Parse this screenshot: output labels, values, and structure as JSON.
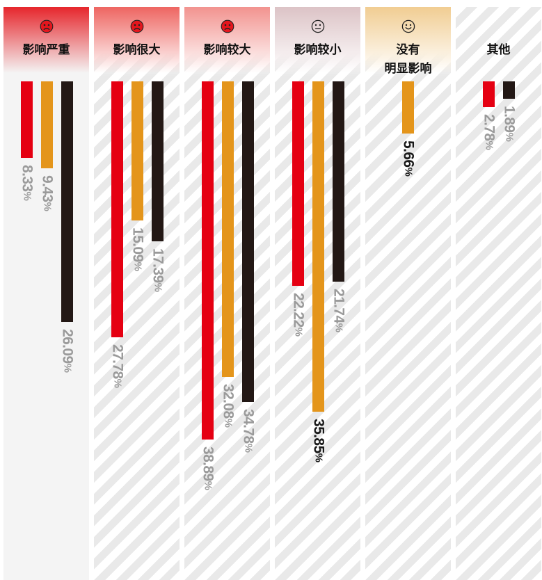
{
  "colors": {
    "page_bg": "#ffffff",
    "plain_column_bg": "#f4f4f4",
    "stripe": "#e9e9e9",
    "sad_icon_fill": "#e5161d",
    "icon_stroke": "#222222",
    "title_text": "#111111"
  },
  "columns": [
    {
      "icon": "sad-face-icon",
      "tint": "#e6262c",
      "striped": false
    },
    {
      "icon": "sad-face-icon",
      "tint": "#ee6561",
      "striped": true
    },
    {
      "icon": "sad-face-icon",
      "tint": "#f2938f",
      "striped": true
    },
    {
      "icon": "neutral-face-icon",
      "tint": "#dcc3c6",
      "striped": true
    },
    {
      "icon": "smile-face-icon",
      "tint": "#f1cd92",
      "striped": true
    },
    {
      "icon": null,
      "tint": null,
      "striped": true
    }
  ],
  "chart_data": {
    "type": "bar",
    "categories": [
      "影响严重",
      "影响很大",
      "影响较大",
      "影响较小",
      "没有\n明显影响",
      "其他"
    ],
    "series": [
      {
        "color": "#e50012",
        "values": [
          8.33,
          27.78,
          38.89,
          22.22,
          null,
          2.78
        ]
      },
      {
        "color": "#e4951b",
        "values": [
          9.43,
          15.09,
          32.08,
          35.85,
          5.66,
          null
        ]
      },
      {
        "color": "#231815",
        "values": [
          26.09,
          17.39,
          34.78,
          21.74,
          null,
          1.89
        ]
      }
    ],
    "value_suffix": "%",
    "label_color": "#9a9a9a",
    "highlight_label_color": "#1a1a1a",
    "highlighted": [
      {
        "series": 1,
        "category": 3
      },
      {
        "series": 1,
        "category": 4
      }
    ],
    "ylim": [
      0,
      40
    ],
    "grid": false
  }
}
